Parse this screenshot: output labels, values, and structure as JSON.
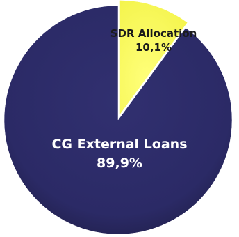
{
  "chart_data": {
    "type": "pie",
    "title": "",
    "slices": [
      {
        "label": "SDR Allocation",
        "value": 10.1,
        "value_label": "10,1%",
        "color": "#ffff66",
        "exploded": true
      },
      {
        "label": "CG External Loans",
        "value": 89.9,
        "value_label": "89,9%",
        "color": "#2b2a66",
        "exploded": false
      }
    ],
    "start_angle": "top",
    "direction": "clockwise",
    "label_colors": {
      "SDR Allocation": "#1a1a1a",
      "CG External Loans": "#ffffff"
    }
  }
}
